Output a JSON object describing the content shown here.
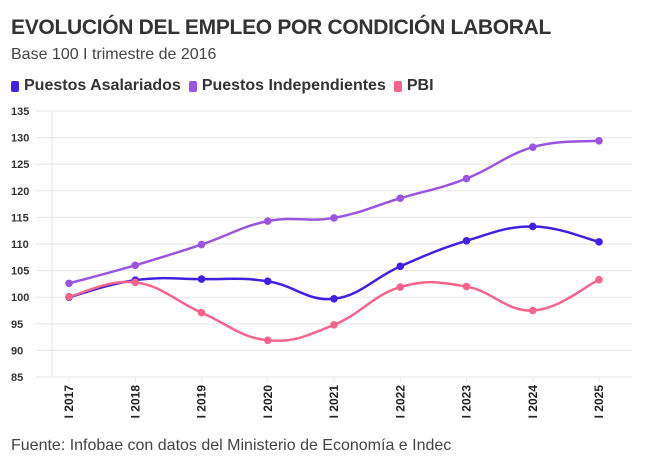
{
  "header": {
    "title": "EVOLUCIÓN DEL EMPLEO POR CONDICIÓN LABORAL",
    "subtitle": "Base 100 I trimestre de 2016"
  },
  "footer": {
    "source": "Fuente: Infobae con datos del Ministerio de Economía e Indec"
  },
  "chart_data": {
    "type": "line",
    "title": "EVOLUCIÓN DEL EMPLEO POR CONDICIÓN LABORAL",
    "subtitle": "Base 100 I trimestre de 2016",
    "xlabel": "",
    "ylabel": "",
    "categories": [
      "I 2017",
      "I 2018",
      "I 2019",
      "I 2020",
      "I 2021",
      "I 2022",
      "I 2023",
      "I 2024",
      "I 2025"
    ],
    "ylim": [
      85,
      135
    ],
    "yticks": [
      85,
      90,
      95,
      100,
      105,
      110,
      115,
      120,
      125,
      130,
      135
    ],
    "grid": true,
    "legend_position": "top-left",
    "series": [
      {
        "name": "Puestos Asalariados",
        "color": "#3f22e0",
        "values": [
          100.0,
          103.2,
          103.4,
          103.0,
          99.7,
          105.8,
          110.6,
          113.3,
          110.4
        ]
      },
      {
        "name": "Puestos Independientes",
        "color": "#9a55e0",
        "values": [
          102.6,
          106.0,
          109.9,
          114.3,
          114.9,
          118.6,
          122.3,
          128.2,
          129.4
        ]
      },
      {
        "name": "PBI",
        "color": "#f5648a",
        "values": [
          100.1,
          102.8,
          97.1,
          91.9,
          94.8,
          101.9,
          102.0,
          97.5,
          103.3
        ]
      }
    ]
  }
}
